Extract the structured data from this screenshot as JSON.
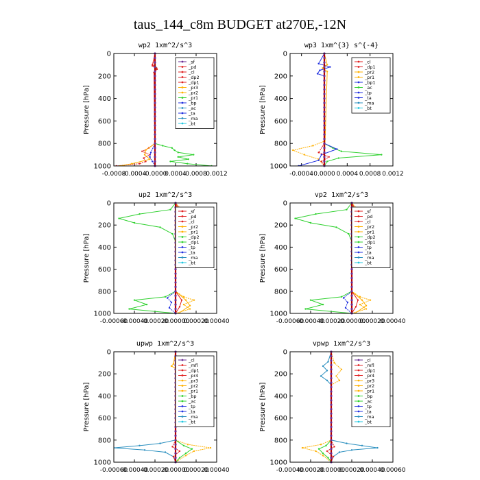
{
  "title": "taus_144_c8m  BUDGET at270E,-12N",
  "colors": {
    "frame": "#000000",
    "bt_line": "#b40000",
    "bt_fill": "#6a2b93",
    "green": "#2fd12f",
    "blue": "#2030e0",
    "orange": "#ffb000",
    "red": "#e02020",
    "teal": "#2a8fbf"
  },
  "chart_data": [
    {
      "type": "line",
      "title": "wp2  1xm^2/s^3",
      "ylabel": "Pressure [hPa]",
      "ylim": [
        1000,
        0
      ],
      "xlim": [
        -0.0008,
        0.0012
      ],
      "yticks": [
        0,
        200,
        400,
        600,
        800,
        1000
      ],
      "xticks": [
        -0.0008,
        -0.0004,
        0.0,
        0.0004,
        0.0008,
        0.0012
      ],
      "xtick_labels": [
        "-0.0008",
        "-0.0004",
        "-0.0000",
        "0.0004",
        "0.0008",
        "0.0012"
      ],
      "legend": [
        "_sf",
        "_pd",
        "_cl",
        "_dp2",
        "_dp1",
        "_pr3",
        "_pr2",
        "_pr1",
        "_bp",
        "_ac",
        "_ta",
        "_ma",
        "_bt"
      ],
      "legend_colors": [
        "#6a2b93",
        "#e02020",
        "#e02020",
        "#e02020",
        "#e02020",
        "#ffb000",
        "#ffb000",
        "#2fd12f",
        "#2030e0",
        "#2a8fbf",
        "#2030e0",
        "#2a8fbf",
        "#21c7e0"
      ],
      "series": [
        {
          "name": "_ac",
          "color": "#2fd12f",
          "p": [
            0,
            100,
            130,
            160,
            200,
            400,
            800,
            820,
            840,
            860,
            880,
            900,
            920,
            940,
            960,
            980,
            1000
          ],
          "x": [
            0,
            0,
            3e-05,
            0,
            0,
            0,
            0,
            0.00015,
            0.00033,
            0.00038,
            0.00045,
            0.00075,
            0.00045,
            0.00065,
            0.0003,
            0.00063,
            0.0011
          ]
        },
        {
          "name": "_pr1",
          "color": "#e02020",
          "p": [
            0,
            100,
            130,
            160,
            800,
            840,
            870,
            900,
            930,
            960,
            980,
            1000
          ],
          "x": [
            0,
            -5e-05,
            3e-05,
            0,
            0,
            -0.00012,
            -0.00025,
            -0.0001,
            -0.00022,
            -0.00018,
            -0.0003,
            -0.00075
          ]
        },
        {
          "name": "_pr2",
          "color": "#ffb000",
          "p": [
            0,
            800,
            860,
            900,
            940,
            980,
            1000
          ],
          "x": [
            0,
            0,
            -0.00018,
            -0.0002,
            -0.0001,
            -0.00045,
            -0.00068
          ]
        },
        {
          "name": "_bp",
          "color": "#2030e0",
          "p": [
            0,
            800,
            880,
            920,
            960,
            1000
          ],
          "x": [
            0,
            0,
            -8e-05,
            -0.0001,
            -5e-05,
            0
          ]
        },
        {
          "name": "_pd",
          "color": "#e02020",
          "p": [
            0,
            110,
            140,
            170,
            1000
          ],
          "x": [
            0,
            -5e-05,
            4e-05,
            -2e-05,
            0
          ]
        }
      ]
    },
    {
      "type": "line",
      "title": "wp3  1xm^{3} s^{-4}",
      "ylabel": "Pressure [hPa]",
      "ylim": [
        1000,
        0
      ],
      "xlim": [
        -0.0006,
        0.0012
      ],
      "yticks": [
        0,
        200,
        400,
        600,
        800,
        1000
      ],
      "xticks": [
        -0.0004,
        0.0,
        0.0004,
        0.0008,
        0.0012
      ],
      "xtick_labels": [
        "-0.0004",
        "0.0000",
        "0.0004",
        "0.0008",
        "0.0012"
      ],
      "legend": [
        "_cl",
        "_dp1",
        "_pr2",
        "_pr1",
        "_bp1",
        "_ac",
        "_tp",
        "_ta",
        "_ma",
        "_bt"
      ],
      "legend_colors": [
        "#e02020",
        "#e02020",
        "#ffb000",
        "#ffb000",
        "#2030e0",
        "#2fd12f",
        "#2030e0",
        "#2030e0",
        "#2a8fbf",
        "#21c7e0"
      ],
      "series": [
        {
          "name": "_ac",
          "color": "#2fd12f",
          "p": [
            0,
            800,
            840,
            870,
            900,
            930,
            960,
            1000
          ],
          "x": [
            0,
            0,
            0.00015,
            0.0003,
            0.001,
            0.00025,
            5e-05,
            0
          ]
        },
        {
          "name": "_pr1",
          "color": "#ffb000",
          "p": [
            0,
            780,
            820,
            860,
            900,
            940,
            1000
          ],
          "x": [
            0,
            0,
            -0.0002,
            -0.00055,
            -0.00035,
            -0.0001,
            0
          ]
        },
        {
          "name": "_bp1",
          "color": "#2030e0",
          "p": [
            0,
            90,
            120,
            150,
            180,
            200,
            800,
            850,
            900,
            950,
            1000
          ],
          "x": [
            0,
            -0.0001,
            0.0001,
            -8e-05,
            -0.00012,
            0,
            0,
            0.00022,
            -5e-05,
            -0.0001,
            -0.00045
          ]
        },
        {
          "name": "_dp1",
          "color": "#e02020",
          "p": [
            0,
            800,
            880,
            920,
            960,
            1000
          ],
          "x": [
            0,
            0,
            -0.0001,
            8e-05,
            -5e-05,
            0
          ]
        },
        {
          "name": "_pr2",
          "color": "#ffb000",
          "p": [
            0,
            100,
            130,
            160,
            1000
          ],
          "x": [
            0,
            5e-05,
            -3e-05,
            5e-05,
            0
          ]
        }
      ]
    },
    {
      "type": "line",
      "title": "up2  1xm^2/s^3",
      "ylabel": "Pressure [hPa]",
      "ylim": [
        1000,
        0
      ],
      "xlim": [
        -0.0006,
        0.0004
      ],
      "yticks": [
        0,
        200,
        400,
        600,
        800,
        1000
      ],
      "xticks": [
        -0.0006,
        -0.0004,
        -0.0002,
        0.0,
        0.0002,
        0.0004
      ],
      "xtick_labels": [
        "-0.00060",
        "-0.00040",
        "-0.00020",
        "-0.00000",
        "0.00020",
        "0.00040"
      ],
      "legend": [
        "_sf",
        "_pd",
        "_cl",
        "_pr2",
        "_pr1",
        "_dp2",
        "_dp1",
        "_tp",
        "_ta",
        "_ma",
        "_bt"
      ],
      "legend_colors": [
        "#e02020",
        "#e02020",
        "#e02020",
        "#ffb000",
        "#ffb000",
        "#2fd12f",
        "#2fd12f",
        "#2030e0",
        "#2030e0",
        "#2a8fbf",
        "#21c7e0"
      ],
      "series": [
        {
          "name": "_dp1",
          "color": "#2fd12f",
          "p": [
            0,
            60,
            100,
            140,
            180,
            220,
            280,
            350,
            400,
            800,
            850,
            880,
            920,
            960,
            1000
          ],
          "x": [
            0,
            -5e-05,
            -0.00035,
            -0.00055,
            -0.0004,
            -0.00015,
            -3e-05,
            0,
            0,
            0,
            -0.0001,
            -0.0004,
            -0.00028,
            -0.00045,
            0
          ]
        },
        {
          "name": "_pr1",
          "color": "#ffb000",
          "p": [
            0,
            80,
            120,
            160,
            200,
            800,
            850,
            880,
            920,
            960,
            1000
          ],
          "x": [
            0,
            8e-05,
            0.0001,
            4e-05,
            0,
            0,
            8e-05,
            0.00018,
            8e-05,
            0.00014,
            0
          ]
        },
        {
          "name": "_pr2",
          "color": "#ffb000",
          "p": [
            0,
            100,
            140,
            180,
            800,
            880,
            930,
            1000
          ],
          "x": [
            0,
            3e-05,
            6e-05,
            0,
            0,
            0.0001,
            0.00014,
            3e-05
          ]
        },
        {
          "name": "_tp",
          "color": "#2030e0",
          "p": [
            0,
            800,
            860,
            900,
            950,
            1000
          ],
          "x": [
            0,
            0,
            -8e-05,
            -4e-05,
            -6e-05,
            0
          ]
        },
        {
          "name": "_cl",
          "color": "#e02020",
          "p": [
            0,
            100,
            140,
            180,
            800,
            880,
            940,
            1000
          ],
          "x": [
            0,
            6e-05,
            3e-05,
            0,
            0,
            6e-05,
            4e-05,
            0
          ]
        }
      ]
    },
    {
      "type": "line",
      "title": "vp2  1xm^2/s^3",
      "ylabel": "Pressure [hPa]",
      "ylim": [
        1000,
        0
      ],
      "xlim": [
        -0.0006,
        0.0004
      ],
      "yticks": [
        0,
        200,
        400,
        600,
        800,
        1000
      ],
      "xticks": [
        -0.0006,
        -0.0004,
        -0.0002,
        0.0,
        0.0002,
        0.0004
      ],
      "xtick_labels": [
        "-0.00060",
        "-0.00040",
        "-0.00020",
        "-0.00000",
        "0.00020",
        "0.00040"
      ],
      "legend": [
        "_sf",
        "_pd",
        "_cl",
        "_pr2",
        "_pr1",
        "_dp2",
        "_dp1",
        "_tp",
        "_ta",
        "_ma",
        "_bt"
      ],
      "legend_colors": [
        "#e02020",
        "#e02020",
        "#e02020",
        "#ffb000",
        "#ffb000",
        "#2fd12f",
        "#2fd12f",
        "#2030e0",
        "#2030e0",
        "#2a8fbf",
        "#21c7e0"
      ],
      "series": [
        {
          "name": "_dp1",
          "color": "#2fd12f",
          "p": [
            0,
            60,
            100,
            140,
            180,
            220,
            280,
            350,
            400,
            800,
            850,
            880,
            920,
            960,
            1000
          ],
          "x": [
            0,
            -5e-05,
            -0.00035,
            -0.00055,
            -0.0004,
            -0.00015,
            -3e-05,
            0,
            0,
            0,
            -0.0001,
            -0.0004,
            -0.00028,
            -0.00045,
            0
          ]
        },
        {
          "name": "_pr1",
          "color": "#ffb000",
          "p": [
            0,
            80,
            120,
            160,
            200,
            800,
            850,
            880,
            920,
            960,
            1000
          ],
          "x": [
            0,
            8e-05,
            0.0001,
            4e-05,
            0,
            0,
            8e-05,
            0.00018,
            8e-05,
            0.00014,
            0
          ]
        },
        {
          "name": "_pr2",
          "color": "#ffb000",
          "p": [
            0,
            100,
            140,
            180,
            800,
            880,
            930,
            1000
          ],
          "x": [
            0,
            3e-05,
            6e-05,
            0,
            0,
            0.0001,
            0.00014,
            3e-05
          ]
        },
        {
          "name": "_tp",
          "color": "#2030e0",
          "p": [
            0,
            800,
            860,
            900,
            950,
            1000
          ],
          "x": [
            0,
            0,
            -8e-05,
            -4e-05,
            -6e-05,
            0
          ]
        },
        {
          "name": "_cl",
          "color": "#e02020",
          "p": [
            0,
            100,
            140,
            180,
            800,
            880,
            940,
            1000
          ],
          "x": [
            0,
            6e-05,
            3e-05,
            0,
            0,
            6e-05,
            4e-05,
            0
          ]
        }
      ]
    },
    {
      "type": "line",
      "title": "upwp  1xm^2/s^3",
      "ylabel": "Pressure [hPa]",
      "ylim": [
        1000,
        0
      ],
      "xlim": [
        -0.0006,
        0.0004
      ],
      "yticks": [
        0,
        200,
        400,
        600,
        800,
        1000
      ],
      "xticks": [
        -0.0006,
        -0.0004,
        -0.0002,
        0.0,
        0.0002,
        0.0004
      ],
      "xtick_labels": [
        "-0.00060",
        "-0.00040",
        "-0.00020",
        "-0.00000",
        "0.00020",
        "0.00040"
      ],
      "legend": [
        "_cl",
        "_mfl",
        "_dp1",
        "_pr4",
        "_pr3",
        "_pr2",
        "_pr1",
        "_bp",
        "_ac",
        "_tp",
        "_ta",
        "_ma",
        "_bt"
      ],
      "legend_colors": [
        "#6a2b93",
        "#e02020",
        "#e02020",
        "#e02020",
        "#ffb000",
        "#ffb000",
        "#ffb000",
        "#2fd12f",
        "#2fd12f",
        "#2030e0",
        "#2030e0",
        "#2a8fbf",
        "#21c7e0"
      ],
      "series": [
        {
          "name": "_tp",
          "color": "#2a8fbf",
          "p": [
            0,
            800,
            830,
            850,
            870,
            890,
            910,
            950,
            1000
          ],
          "x": [
            0,
            0,
            -0.00015,
            -0.00035,
            -0.0006,
            -0.0003,
            -0.0001,
            -2e-05,
            0
          ]
        },
        {
          "name": "_pr1",
          "color": "#ffb000",
          "p": [
            0,
            800,
            840,
            870,
            900,
            940,
            1000
          ],
          "x": [
            0,
            0,
            0.00012,
            0.00034,
            0.00018,
            0.0001,
            0
          ]
        },
        {
          "name": "_ac",
          "color": "#2fd12f",
          "p": [
            0,
            800,
            850,
            880,
            920,
            960,
            1000
          ],
          "x": [
            0,
            0,
            8e-05,
            0.00016,
            0.0001,
            4e-05,
            0
          ]
        },
        {
          "name": "_dp1",
          "color": "#e02020",
          "p": [
            0,
            800,
            860,
            900,
            950,
            1000
          ],
          "x": [
            0,
            0,
            -3e-05,
            4e-05,
            -2e-05,
            0
          ]
        },
        {
          "name": "_pr2",
          "color": "#ffb000",
          "p": [
            0,
            110,
            130,
            150,
            1000
          ],
          "x": [
            0,
            -2e-05,
            -4e-05,
            0,
            0
          ]
        }
      ]
    },
    {
      "type": "line",
      "title": "vpwp  1xm^2/s^3",
      "ylabel": "Pressure [hPa]",
      "ylim": [
        1000,
        0
      ],
      "xlim": [
        -0.0004,
        0.0006
      ],
      "yticks": [
        0,
        200,
        400,
        600,
        800,
        1000
      ],
      "xticks": [
        -0.0004,
        -0.0002,
        0.0,
        0.0002,
        0.0004,
        0.0006
      ],
      "xtick_labels": [
        "-0.00040",
        "-0.00020",
        "-0.00000",
        "0.00020",
        "0.00040",
        "0.00060"
      ],
      "legend": [
        "_cl",
        "_mfl",
        "_dp1",
        "_pr4",
        "_pr3",
        "_pr2",
        "_pr1",
        "_bp",
        "_ac",
        "_tp",
        "_ta",
        "_ma",
        "_bt"
      ],
      "legend_colors": [
        "#6a2b93",
        "#e02020",
        "#e02020",
        "#e02020",
        "#ffb000",
        "#ffb000",
        "#ffb000",
        "#2fd12f",
        "#2fd12f",
        "#2030e0",
        "#2030e0",
        "#2a8fbf",
        "#21c7e0"
      ],
      "series": [
        {
          "name": "_tp",
          "color": "#2a8fbf",
          "p": [
            0,
            90,
            130,
            170,
            220,
            260,
            300,
            800,
            830,
            850,
            870,
            890,
            910,
            950,
            1000
          ],
          "x": [
            0,
            -3e-05,
            -8e-05,
            -4e-05,
            -0.0001,
            -4e-05,
            0,
            0,
            0.00015,
            0.0003,
            0.00045,
            0.0002,
            8e-05,
            2e-05,
            0
          ]
        },
        {
          "name": "_pr1",
          "color": "#ffb000",
          "p": [
            0,
            100,
            160,
            220,
            260,
            300,
            800,
            840,
            870,
            900,
            940,
            1000
          ],
          "x": [
            0,
            3e-05,
            0.0001,
            5e-05,
            8e-05,
            0,
            0,
            -0.0001,
            -0.00028,
            -0.00015,
            -8e-05,
            0
          ]
        },
        {
          "name": "_ac",
          "color": "#2fd12f",
          "p": [
            0,
            800,
            850,
            880,
            920,
            960,
            1000
          ],
          "x": [
            0,
            0,
            -5e-05,
            -0.00012,
            -8e-05,
            -3e-05,
            0
          ]
        },
        {
          "name": "_dp1",
          "color": "#e02020",
          "p": [
            0,
            800,
            860,
            900,
            950,
            1000
          ],
          "x": [
            0,
            0,
            3e-05,
            -4e-05,
            2e-05,
            0
          ]
        }
      ]
    }
  ]
}
